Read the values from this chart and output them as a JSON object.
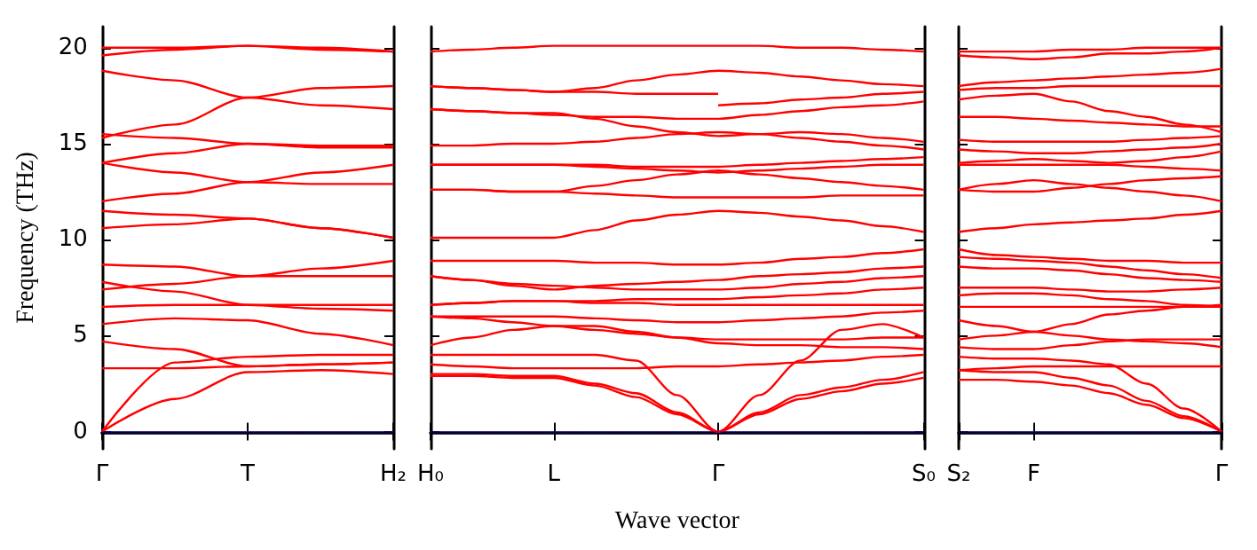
{
  "chart_data": [
    {
      "type": "line",
      "ylabel": "Frequency (THz)",
      "categories": [
        "Γ",
        null,
        "T",
        null,
        "H₂"
      ],
      "ylim": [
        -0.9,
        21.1
      ],
      "yticks": [
        0,
        5,
        10,
        15,
        20
      ],
      "ref_lines": [
        {
          "axis": "y",
          "value": 0,
          "color": "#0000ff",
          "line_style": "dotted"
        }
      ],
      "series": [
        {
          "color": "#ff0000",
          "values": [
            19.6,
            19.9,
            20.1,
            20.0,
            19.8
          ]
        },
        {
          "color": "#ff0000",
          "values": [
            20.0,
            20.0,
            20.1,
            19.9,
            19.8
          ]
        },
        {
          "color": "#ff0000",
          "values": [
            18.8,
            18.3,
            17.4,
            17.0,
            16.8
          ]
        },
        {
          "color": "#ff0000",
          "values": [
            15.3,
            16.0,
            17.4,
            17.9,
            18.0
          ]
        },
        {
          "color": "#ff0000",
          "values": [
            15.5,
            15.3,
            15.0,
            14.8,
            14.8
          ]
        },
        {
          "color": "#ff0000",
          "values": [
            14.0,
            14.5,
            15.0,
            14.9,
            14.9
          ]
        },
        {
          "color": "#ff0000",
          "values": [
            14.0,
            13.5,
            13.0,
            13.5,
            13.9
          ]
        },
        {
          "color": "#ff0000",
          "values": [
            12.0,
            12.4,
            13.0,
            12.9,
            12.9
          ]
        },
        {
          "color": "#ff0000",
          "values": [
            11.5,
            11.3,
            11.1,
            10.6,
            10.1
          ]
        },
        {
          "color": "#ff0000",
          "values": [
            10.6,
            10.8,
            11.1,
            10.6,
            10.1
          ]
        },
        {
          "color": "#ff0000",
          "values": [
            8.7,
            8.6,
            8.1,
            8.5,
            8.9
          ]
        },
        {
          "color": "#ff0000",
          "values": [
            7.4,
            7.7,
            8.1,
            8.1,
            8.1
          ]
        },
        {
          "color": "#ff0000",
          "values": [
            7.8,
            7.3,
            6.6,
            6.4,
            6.3
          ]
        },
        {
          "color": "#ff0000",
          "values": [
            6.5,
            6.6,
            6.6,
            6.6,
            6.6
          ]
        },
        {
          "color": "#ff0000",
          "values": [
            5.6,
            5.9,
            5.8,
            5.1,
            4.5
          ]
        },
        {
          "color": "#ff0000",
          "values": [
            4.7,
            4.3,
            3.4,
            3.5,
            3.6
          ]
        },
        {
          "color": "#ff0000",
          "values": [
            3.3,
            3.3,
            3.4,
            3.5,
            3.6
          ]
        },
        {
          "color": "#ff0000",
          "values": [
            0,
            3.6,
            3.9,
            4.0,
            4.0
          ]
        },
        {
          "color": "#ff0000",
          "values": [
            0,
            1.7,
            3.1,
            3.2,
            3.0
          ]
        }
      ]
    },
    {
      "type": "line",
      "xlabel": "Wave vector",
      "tick_labels": "x",
      "categories": [
        "H₀",
        null,
        null,
        "L",
        null,
        null,
        null,
        "Γ",
        null,
        null,
        null,
        null,
        "S₀"
      ],
      "ylim": [
        -0.9,
        21.1
      ],
      "yticks": [
        0,
        5,
        10,
        15,
        20
      ],
      "ref_lines": [
        {
          "axis": "y",
          "value": 0,
          "color": "#0000ff",
          "line_style": "dotted"
        }
      ],
      "series": [
        {
          "color": "#ff0000",
          "values": [
            19.8,
            19.9,
            20.0,
            20.1,
            20.1,
            20.1,
            20.1,
            20.1,
            20.1,
            20.0,
            20.0,
            19.9,
            19.8
          ]
        },
        {
          "color": "#ff0000",
          "values": [
            18.0,
            17.9,
            17.8,
            17.7,
            17.9,
            18.3,
            18.6,
            18.8,
            18.7,
            18.5,
            18.3,
            18.1,
            18.0
          ]
        },
        {
          "color": "#ff0000",
          "values": [
            18.0,
            17.9,
            17.8,
            17.7,
            17.7,
            17.6,
            17.6,
            17.6,
            null,
            null,
            null,
            null,
            null
          ]
        },
        {
          "color": "#ff0000",
          "values": [
            null,
            null,
            null,
            null,
            null,
            null,
            null,
            17.0,
            17.1,
            17.3,
            17.4,
            17.6,
            17.7
          ]
        },
        {
          "color": "#ff0000",
          "values": [
            16.8,
            16.7,
            16.6,
            16.5,
            16.4,
            16.4,
            16.3,
            16.3,
            16.5,
            16.7,
            16.9,
            17.0,
            17.2
          ]
        },
        {
          "color": "#ff0000",
          "values": [
            16.8,
            16.7,
            16.6,
            16.6,
            16.3,
            15.9,
            15.6,
            15.4,
            15.5,
            15.6,
            15.5,
            15.3,
            15.1
          ]
        },
        {
          "color": "#ff0000",
          "values": [
            14.9,
            14.9,
            15.0,
            15.0,
            15.1,
            15.3,
            15.5,
            15.6,
            15.5,
            15.3,
            15.1,
            14.9,
            14.7
          ]
        },
        {
          "color": "#ff0000",
          "values": [
            13.9,
            13.9,
            13.9,
            13.9,
            13.9,
            13.8,
            13.8,
            13.8,
            13.9,
            14.0,
            14.1,
            14.2,
            14.3
          ]
        },
        {
          "color": "#ff0000",
          "values": [
            13.9,
            13.9,
            13.9,
            13.9,
            13.8,
            13.7,
            13.6,
            13.5,
            13.6,
            13.7,
            13.8,
            13.9,
            13.9
          ]
        },
        {
          "color": "#ff0000",
          "values": [
            12.6,
            12.6,
            12.5,
            12.5,
            12.8,
            13.1,
            13.4,
            13.6,
            13.4,
            13.2,
            13.0,
            12.8,
            12.6
          ]
        },
        {
          "color": "#ff0000",
          "values": [
            12.6,
            12.6,
            12.5,
            12.5,
            12.4,
            12.3,
            12.2,
            12.2,
            12.2,
            12.2,
            12.3,
            12.3,
            12.3
          ]
        },
        {
          "color": "#ff0000",
          "values": [
            10.1,
            10.1,
            10.1,
            10.1,
            10.5,
            11.0,
            11.3,
            11.5,
            11.4,
            11.2,
            11.0,
            10.7,
            10.4
          ]
        },
        {
          "color": "#ff0000",
          "values": [
            8.9,
            8.9,
            8.9,
            8.9,
            8.8,
            8.8,
            8.7,
            8.7,
            8.8,
            9.0,
            9.1,
            9.3,
            9.5
          ]
        },
        {
          "color": "#ff0000",
          "values": [
            8.1,
            7.9,
            7.6,
            7.4,
            7.6,
            7.7,
            7.8,
            7.9,
            8.1,
            8.2,
            8.3,
            8.5,
            8.6
          ]
        },
        {
          "color": "#ff0000",
          "values": [
            8.1,
            7.9,
            7.7,
            7.6,
            7.5,
            7.4,
            7.4,
            7.4,
            7.5,
            7.7,
            7.8,
            8.0,
            8.1
          ]
        },
        {
          "color": "#ff0000",
          "values": [
            6.6,
            6.7,
            6.8,
            6.8,
            6.8,
            6.9,
            6.9,
            6.9,
            7.0,
            7.1,
            7.2,
            7.4,
            7.5
          ]
        },
        {
          "color": "#ff0000",
          "values": [
            6.6,
            6.7,
            6.8,
            6.8,
            6.7,
            6.7,
            6.6,
            6.6,
            6.6,
            6.6,
            6.6,
            6.6,
            6.6
          ]
        },
        {
          "color": "#ff0000",
          "values": [
            6.0,
            6.0,
            6.0,
            6.0,
            5.9,
            5.8,
            5.7,
            5.7,
            5.8,
            5.9,
            6.0,
            6.2,
            6.3
          ]
        },
        {
          "color": "#ff0000",
          "values": [
            6.0,
            5.9,
            5.7,
            5.5,
            5.3,
            5.1,
            4.9,
            4.8,
            4.8,
            4.8,
            4.8,
            4.9,
            4.9
          ]
        },
        {
          "color": "#ff0000",
          "values": [
            4.5,
            4.9,
            5.3,
            5.5,
            5.5,
            5.2,
            4.9,
            4.6,
            4.5,
            4.5,
            4.4,
            4.4,
            4.3
          ]
        },
        {
          "color": "#ff0000",
          "values": [
            3.5,
            3.4,
            3.3,
            3.3,
            3.3,
            3.3,
            3.4,
            3.4,
            3.5,
            3.6,
            3.7,
            3.9,
            4.0
          ]
        },
        {
          "color": "#ff0000",
          "values": [
            4.0,
            4.0,
            4.0,
            4.0,
            4.0,
            3.7,
            1.9,
            0,
            1.9,
            3.7,
            5.3,
            5.6,
            4.9
          ]
        },
        {
          "color": "#ff0000",
          "values": [
            3.0,
            3.0,
            2.9,
            2.9,
            2.5,
            2.0,
            1.0,
            0,
            1.0,
            1.9,
            2.3,
            2.7,
            3.1
          ]
        },
        {
          "color": "#ff0000",
          "values": [
            2.9,
            2.9,
            2.8,
            2.8,
            2.4,
            1.8,
            0.9,
            0,
            0.9,
            1.7,
            2.1,
            2.5,
            2.8
          ]
        }
      ]
    },
    {
      "type": "line",
      "tick_labels": "x",
      "categories": [
        "S₂",
        null,
        "F",
        null,
        null,
        null,
        null,
        "Γ"
      ],
      "ylim": [
        -0.9,
        21.1
      ],
      "yticks": [
        0,
        5,
        10,
        15,
        20
      ],
      "ref_lines": [
        {
          "axis": "y",
          "value": 0,
          "color": "#0000ff",
          "line_style": "dotted"
        }
      ],
      "series": [
        {
          "color": "#ff0000",
          "values": [
            19.8,
            19.8,
            19.8,
            19.9,
            19.9,
            20.0,
            20.0,
            20.0
          ]
        },
        {
          "color": "#ff0000",
          "values": [
            19.6,
            19.5,
            19.4,
            19.5,
            19.7,
            19.7,
            19.8,
            20.0
          ]
        },
        {
          "color": "#ff0000",
          "values": [
            18.0,
            18.2,
            18.3,
            18.4,
            18.5,
            18.6,
            18.7,
            18.9
          ]
        },
        {
          "color": "#ff0000",
          "values": [
            17.8,
            17.9,
            17.9,
            18.0,
            18.0,
            18.0,
            18.0,
            18.0
          ]
        },
        {
          "color": "#ff0000",
          "values": [
            17.3,
            17.5,
            17.6,
            17.2,
            16.7,
            16.4,
            16.0,
            15.6
          ]
        },
        {
          "color": "#ff0000",
          "values": [
            16.4,
            16.4,
            16.3,
            16.2,
            16.1,
            16.0,
            15.9,
            15.9
          ]
        },
        {
          "color": "#ff0000",
          "values": [
            15.2,
            15.1,
            15.1,
            15.1,
            15.1,
            15.2,
            15.3,
            15.4
          ]
        },
        {
          "color": "#ff0000",
          "values": [
            14.7,
            14.6,
            14.5,
            14.5,
            14.6,
            14.7,
            14.8,
            15.0
          ]
        },
        {
          "color": "#ff0000",
          "values": [
            14.0,
            14.1,
            14.2,
            14.1,
            14.0,
            14.1,
            14.3,
            14.6
          ]
        },
        {
          "color": "#ff0000",
          "values": [
            13.9,
            13.9,
            13.9,
            13.9,
            13.9,
            13.8,
            13.7,
            13.6
          ]
        },
        {
          "color": "#ff0000",
          "values": [
            12.6,
            12.9,
            13.1,
            12.9,
            12.7,
            12.5,
            12.3,
            12.0
          ]
        },
        {
          "color": "#ff0000",
          "values": [
            12.6,
            12.5,
            12.5,
            12.7,
            12.9,
            13.1,
            13.2,
            13.3
          ]
        },
        {
          "color": "#ff0000",
          "values": [
            10.4,
            10.6,
            10.8,
            10.9,
            11.0,
            11.1,
            11.3,
            11.5
          ]
        },
        {
          "color": "#ff0000",
          "values": [
            9.5,
            9.2,
            9.1,
            9.0,
            8.9,
            8.9,
            8.8,
            8.8
          ]
        },
        {
          "color": "#ff0000",
          "values": [
            9.1,
            9.0,
            8.9,
            8.8,
            8.6,
            8.4,
            8.2,
            8.0
          ]
        },
        {
          "color": "#ff0000",
          "values": [
            8.6,
            8.5,
            8.5,
            8.4,
            8.2,
            8.0,
            7.9,
            7.8
          ]
        },
        {
          "color": "#ff0000",
          "values": [
            7.5,
            7.5,
            7.5,
            7.4,
            7.3,
            7.3,
            7.4,
            7.5
          ]
        },
        {
          "color": "#ff0000",
          "values": [
            7.1,
            7.2,
            7.2,
            7.1,
            6.9,
            6.8,
            6.6,
            6.5
          ]
        },
        {
          "color": "#ff0000",
          "values": [
            6.5,
            6.5,
            6.5,
            6.5,
            6.5,
            6.5,
            6.5,
            6.5
          ]
        },
        {
          "color": "#ff0000",
          "values": [
            5.8,
            5.5,
            5.2,
            5.0,
            4.8,
            4.7,
            4.6,
            4.4
          ]
        },
        {
          "color": "#ff0000",
          "values": [
            4.8,
            5.0,
            5.2,
            5.6,
            6.1,
            6.3,
            6.5,
            6.6
          ]
        },
        {
          "color": "#ff0000",
          "values": [
            4.4,
            4.3,
            4.3,
            4.5,
            4.7,
            4.8,
            4.8,
            4.8
          ]
        },
        {
          "color": "#ff0000",
          "values": [
            3.9,
            3.8,
            3.8,
            3.7,
            3.5,
            2.5,
            1.2,
            0
          ]
        },
        {
          "color": "#ff0000",
          "values": [
            3.2,
            3.3,
            3.4,
            3.4,
            3.4,
            3.4,
            3.4,
            3.4
          ]
        },
        {
          "color": "#ff0000",
          "values": [
            3.2,
            3.1,
            3.1,
            2.8,
            2.4,
            1.6,
            0.8,
            0
          ]
        },
        {
          "color": "#ff0000",
          "values": [
            2.7,
            2.7,
            2.6,
            2.4,
            2.0,
            1.4,
            0.7,
            0
          ]
        }
      ]
    }
  ]
}
